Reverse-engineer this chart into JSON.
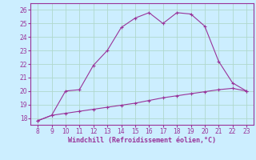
{
  "x_windchill": [
    8,
    9,
    10,
    11,
    12,
    13,
    14,
    15,
    16,
    17,
    18,
    19,
    20,
    21,
    22,
    23
  ],
  "y_windchill": [
    17.8,
    18.2,
    20.0,
    20.1,
    21.9,
    23.0,
    24.7,
    25.4,
    25.8,
    25.0,
    25.8,
    25.7,
    24.8,
    22.2,
    20.6,
    20.0
  ],
  "x_temp": [
    8,
    9,
    10,
    11,
    12,
    13,
    14,
    15,
    16,
    17,
    18,
    19,
    20,
    21,
    22,
    23
  ],
  "y_temp": [
    17.8,
    18.2,
    18.35,
    18.5,
    18.65,
    18.8,
    18.95,
    19.1,
    19.3,
    19.5,
    19.65,
    19.8,
    19.95,
    20.1,
    20.2,
    20.0
  ],
  "line_color": "#993399",
  "bg_color": "#cceeff",
  "grid_color": "#aaddcc",
  "xlabel": "Windchill (Refroidissement éolien,°C)",
  "xlim": [
    7.5,
    23.5
  ],
  "ylim": [
    17.5,
    26.5
  ],
  "xticks": [
    8,
    9,
    10,
    11,
    12,
    13,
    14,
    15,
    16,
    17,
    18,
    19,
    20,
    21,
    22,
    23
  ],
  "yticks": [
    18,
    19,
    20,
    21,
    22,
    23,
    24,
    25,
    26
  ],
  "marker": "+"
}
